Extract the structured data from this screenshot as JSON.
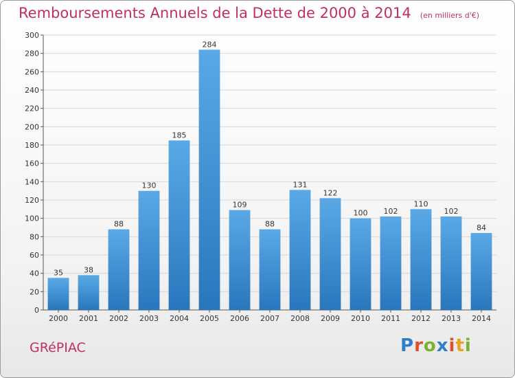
{
  "title": "Remboursements Annuels de la Dette de 2000 à 2014",
  "unit_note": "(en milliers d'€)",
  "commune": "GRéPIAC",
  "brand": {
    "text": "Proxiti",
    "letter_colors": [
      "#2f7fc8",
      "#e0502a",
      "#7ab232",
      "#2f7fc8",
      "#e0502a",
      "#e8a320",
      "#7ab232"
    ]
  },
  "colors": {
    "bar_top": "#5aa9e6",
    "bar_bottom": "#2a76bd",
    "grid": "#d6d6d6",
    "accent": "#c0305a"
  },
  "chart_data": {
    "type": "bar",
    "categories": [
      "2000",
      "2001",
      "2002",
      "2003",
      "2004",
      "2005",
      "2006",
      "2007",
      "2008",
      "2009",
      "2010",
      "2011",
      "2012",
      "2013",
      "2014"
    ],
    "values": [
      35,
      38,
      88,
      130,
      185,
      284,
      109,
      88,
      131,
      122,
      100,
      102,
      110,
      102,
      84
    ],
    "ylim": [
      0,
      300
    ],
    "yticks": [
      0,
      20,
      40,
      60,
      80,
      100,
      120,
      140,
      160,
      180,
      200,
      220,
      240,
      260,
      280,
      300
    ],
    "grid": true,
    "xlabel": "",
    "ylabel": ""
  }
}
